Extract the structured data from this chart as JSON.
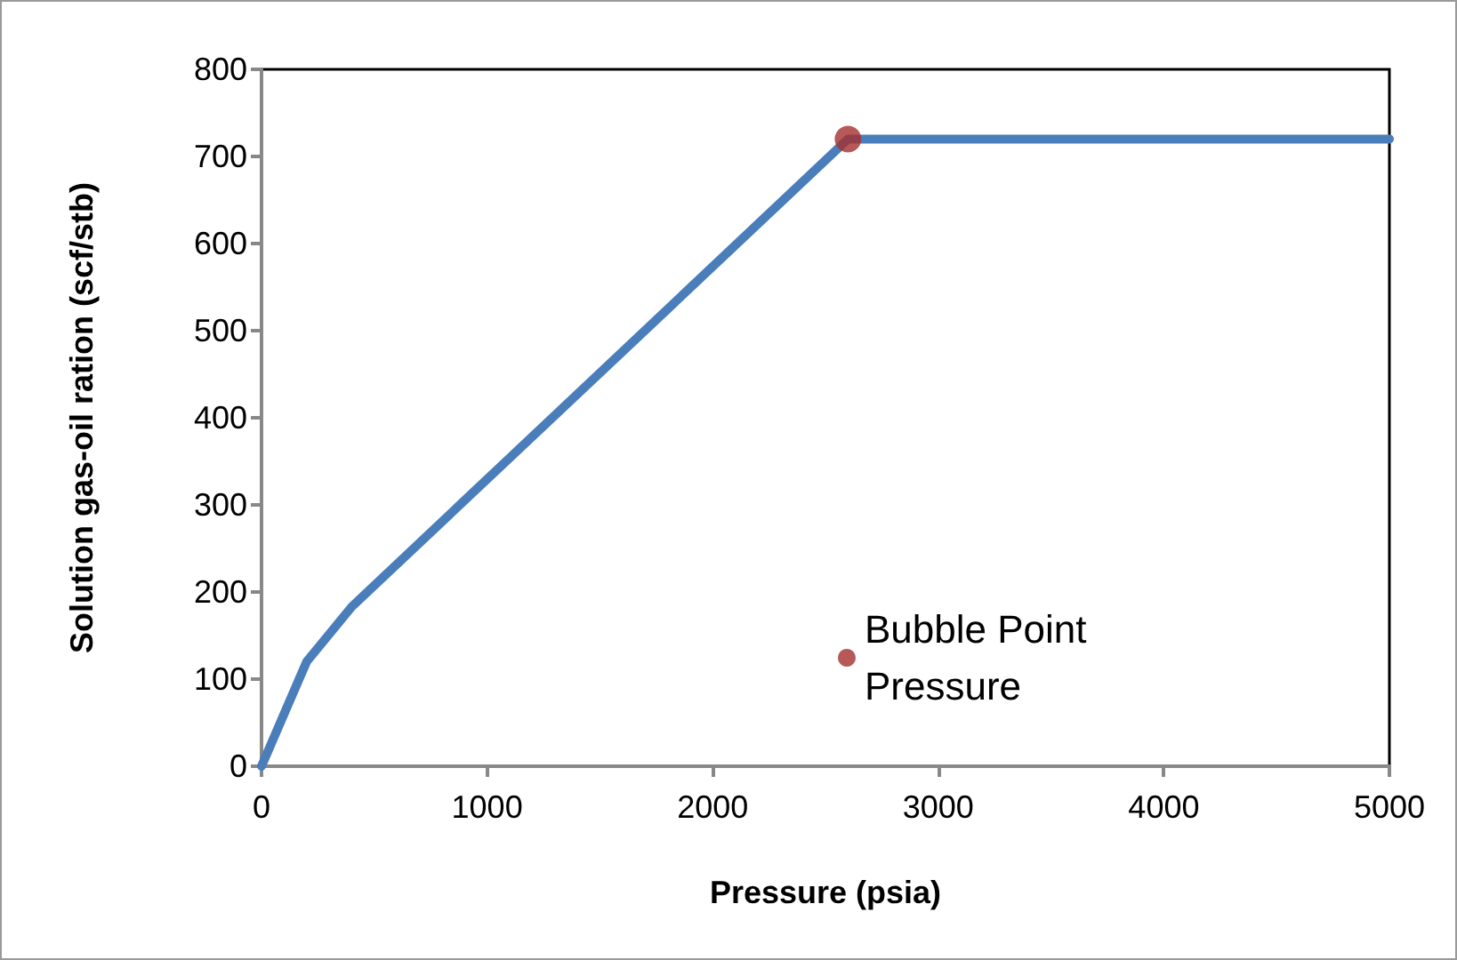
{
  "chart_data": {
    "type": "line",
    "xlabel": "Pressure (psia)",
    "ylabel": "Solution gas-oil ration (scf/stb)",
    "xlim": [
      0,
      5000
    ],
    "xticks": [
      0,
      1000,
      2000,
      3000,
      4000,
      5000
    ],
    "ylim": [
      0,
      800
    ],
    "yticks": [
      0,
      100,
      200,
      300,
      400,
      500,
      600,
      700,
      800
    ],
    "grid": false,
    "legend": "bottom",
    "marker": "none",
    "series": [
      {
        "color": "#4a7ebb",
        "x": [
          0,
          200,
          400,
          2600,
          5000
        ],
        "values": [
          0,
          120,
          183,
          720,
          720
        ]
      },
      {
        "type": "scatter",
        "name": "Bubble Point Pressure",
        "color": "#a5302e",
        "marker": "circle",
        "x": [
          2600
        ],
        "values": [
          720
        ]
      }
    ]
  }
}
